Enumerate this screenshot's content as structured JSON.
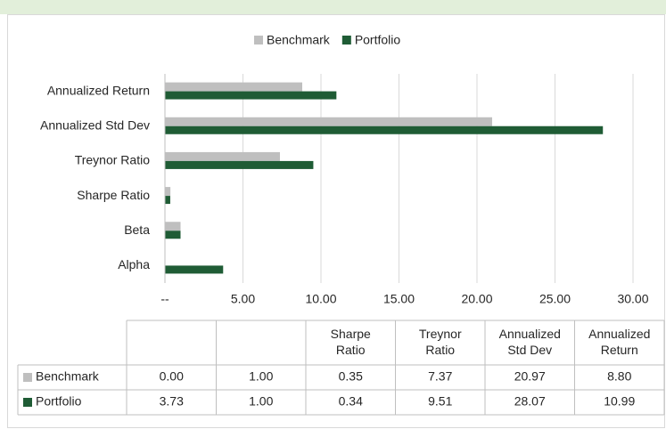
{
  "chart_data": {
    "type": "bar",
    "orientation": "horizontal",
    "categories": [
      "Alpha",
      "Beta",
      "Sharpe Ratio",
      "Treynor Ratio",
      "Annualized Std Dev",
      "Annualized Return"
    ],
    "series": [
      {
        "name": "Benchmark",
        "color": "#bfbfbf",
        "values": [
          0.0,
          1.0,
          0.35,
          7.37,
          20.97,
          8.8
        ],
        "value_labels": [
          "0.00",
          "1.00",
          "0.35",
          "7.37",
          "20.97",
          "8.80"
        ]
      },
      {
        "name": "Portfolio",
        "color": "#1f5c35",
        "values": [
          3.73,
          1.0,
          0.34,
          9.51,
          28.07,
          10.99
        ],
        "value_labels": [
          "3.73",
          "1.00",
          "0.34",
          "9.51",
          "28.07",
          "10.99"
        ]
      }
    ],
    "xlim": [
      0,
      30
    ],
    "xticks": [
      {
        "value": 0,
        "label": "--"
      },
      {
        "value": 5,
        "label": "5.00"
      },
      {
        "value": 10,
        "label": "10.00"
      },
      {
        "value": 15,
        "label": "15.00"
      },
      {
        "value": 20,
        "label": "20.00"
      },
      {
        "value": 25,
        "label": "25.00"
      },
      {
        "value": 30,
        "label": "30.00"
      }
    ],
    "grid": true,
    "legend": "top"
  }
}
